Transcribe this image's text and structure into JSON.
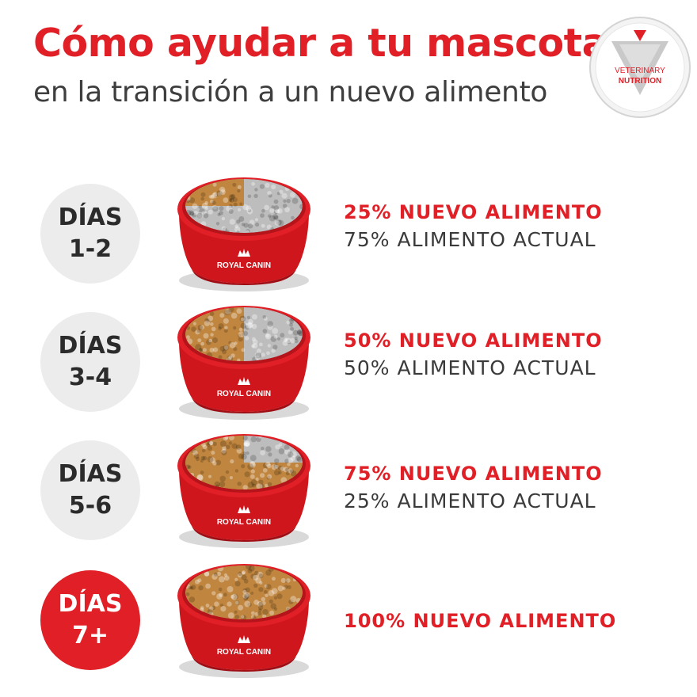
{
  "header": {
    "title": "Cómo ayudar a tu mascota",
    "subtitle": "en la transición a un nuevo alimento"
  },
  "badge": {
    "line1": "VETERINARY",
    "line2": "NUTRITION",
    "icon": "veterinary-nutrition-emblem"
  },
  "bowl_brand": "ROYAL CANIN",
  "colors": {
    "brand_red": "#e01f26",
    "text_dark": "#3a3a3a",
    "circle_gray": "#ececec"
  },
  "steps": [
    {
      "day_label": "DÍAS",
      "day_range": "1-2",
      "new_food": "25% NUEVO ALIMENTO",
      "current_food": "75% ALIMENTO ACTUAL",
      "new_ratio": 0.25
    },
    {
      "day_label": "DÍAS",
      "day_range": "3-4",
      "new_food": "50% NUEVO ALIMENTO",
      "current_food": "50% ALIMENTO ACTUAL",
      "new_ratio": 0.5
    },
    {
      "day_label": "DÍAS",
      "day_range": "5-6",
      "new_food": "75% NUEVO ALIMENTO",
      "current_food": "25% ALIMENTO ACTUAL",
      "new_ratio": 0.75
    },
    {
      "day_label": "DÍAS",
      "day_range": "7+",
      "new_food": "100% NUEVO ALIMENTO",
      "current_food": "",
      "new_ratio": 1
    }
  ]
}
